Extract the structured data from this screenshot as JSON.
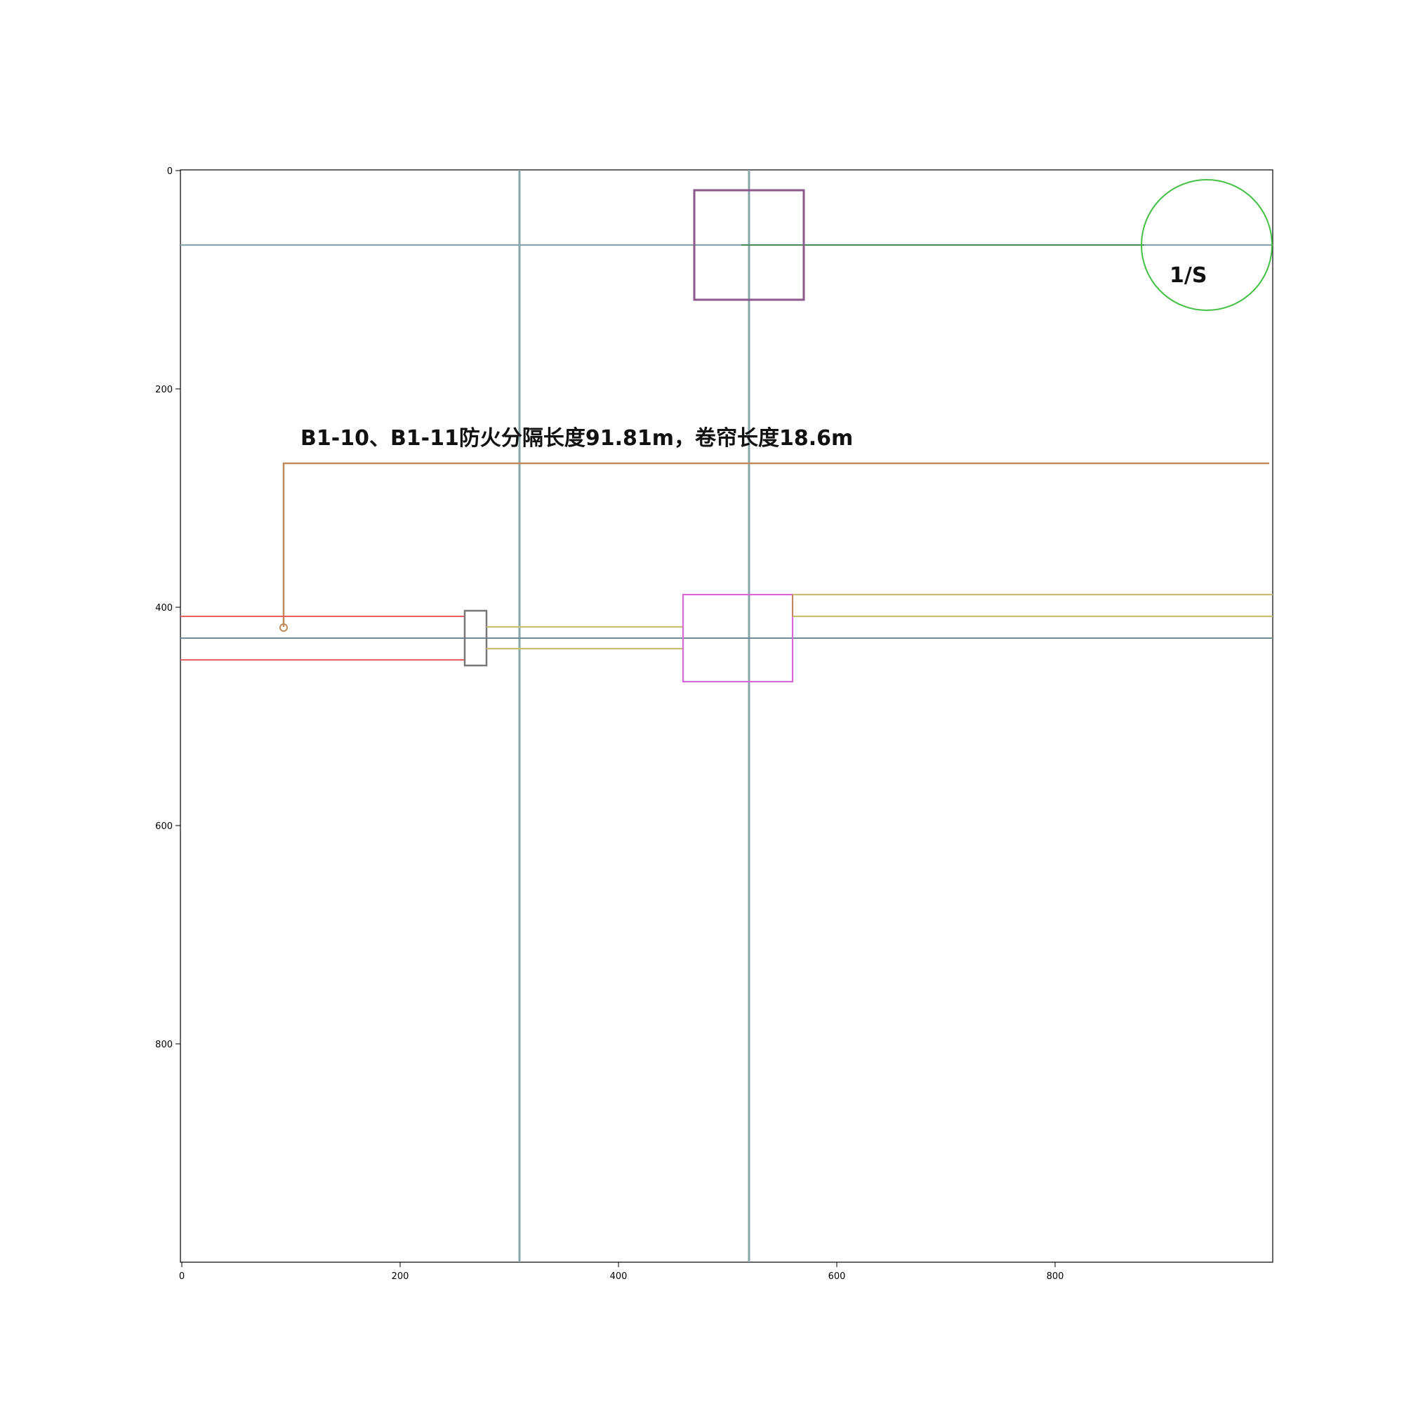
{
  "plot": {
    "xlim": [
      0,
      1000
    ],
    "ylim": [
      0,
      1000
    ],
    "y_inverted": true,
    "x_ticks": [
      0,
      200,
      400,
      600,
      800
    ],
    "y_ticks": [
      0,
      200,
      400,
      600,
      800
    ],
    "x_tick_labels": [
      "0",
      "200",
      "400",
      "600",
      "800"
    ],
    "y_tick_labels": [
      "0",
      "200",
      "400",
      "600",
      "800"
    ]
  },
  "annotation": {
    "text": "B1-10、B1-11防火分隔长度91.81m，卷帘长度18.6m"
  },
  "circle_marker": {
    "label": "1/S"
  },
  "colors": {
    "grid_axis": "#8aa5a8",
    "square_top": "#8b5a8b",
    "square_mid": "#d868d8",
    "circle": "#44c044",
    "leader": "#c08a5a",
    "red": "#e86060",
    "yellow": "#c8c070",
    "gray_box": "#777777",
    "green_line": "#4a8a5a"
  }
}
